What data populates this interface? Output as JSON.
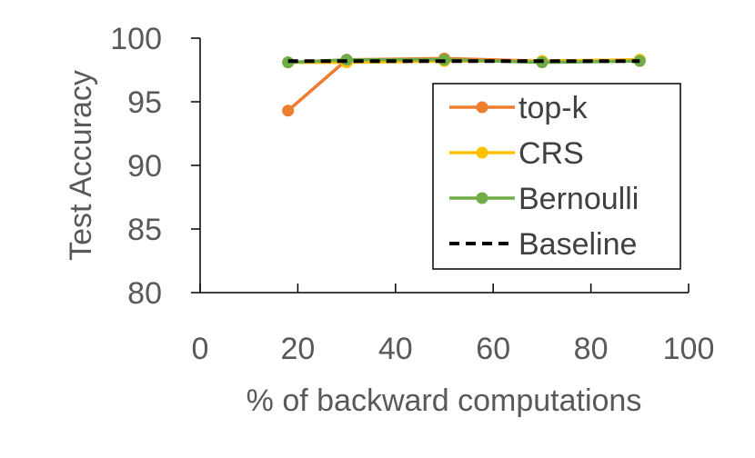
{
  "chart_data": {
    "type": "line",
    "title": "",
    "xlabel": "% of backward computations",
    "ylabel": "Test Accuracy",
    "xlim": [
      0,
      100
    ],
    "ylim": [
      80,
      100
    ],
    "xticks": [
      0,
      20,
      40,
      60,
      80,
      100
    ],
    "yticks": [
      80,
      85,
      90,
      95,
      100
    ],
    "x_tick_labels": [
      "0",
      "20",
      "40",
      "60",
      "80",
      "100"
    ],
    "y_tick_labels": [
      "80",
      "85",
      "90",
      "95",
      "100"
    ],
    "grid": false,
    "legend_position": "right",
    "series": [
      {
        "name": "top-k",
        "color": "#ED7D31",
        "style": "solid-marker",
        "x": [
          18,
          30,
          50,
          70,
          90
        ],
        "y": [
          94.3,
          98.3,
          98.4,
          98.2,
          98.3
        ]
      },
      {
        "name": "CRS",
        "color": "#FFC000",
        "style": "solid-marker",
        "x": [
          18,
          30,
          50,
          70,
          90
        ],
        "y": [
          98.1,
          98.1,
          98.2,
          98.2,
          98.3
        ]
      },
      {
        "name": "Bernoulli",
        "color": "#70AD47",
        "style": "solid-marker",
        "x": [
          18,
          30,
          50,
          70,
          90
        ],
        "y": [
          98.1,
          98.3,
          98.3,
          98.1,
          98.2
        ]
      },
      {
        "name": "Baseline",
        "color": "#000000",
        "style": "dashed",
        "x": [
          18,
          90
        ],
        "y": [
          98.2,
          98.2
        ]
      }
    ]
  }
}
